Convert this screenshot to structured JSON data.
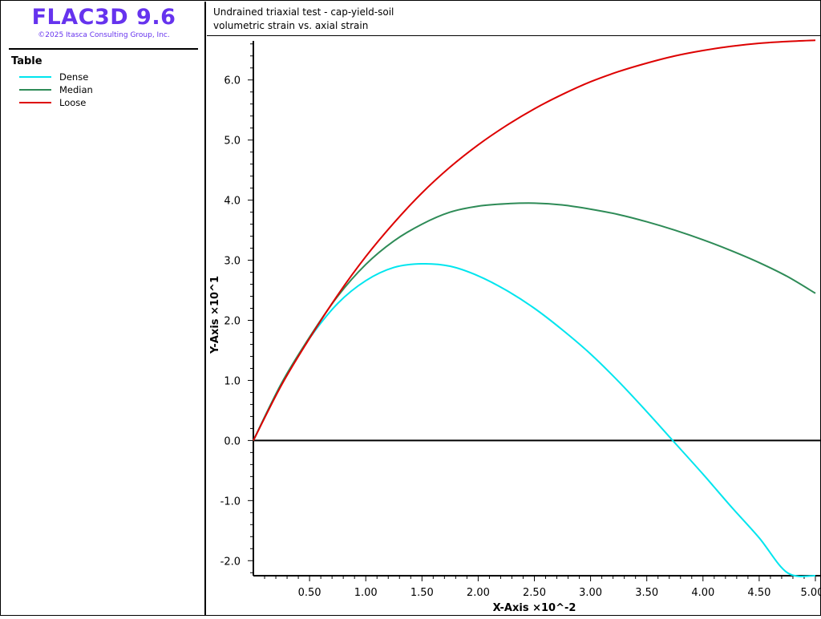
{
  "brand": {
    "title": "FLAC3D 9.6",
    "copyright": "©2025 Itasca Consulting Group, Inc.",
    "color": "#6633ee"
  },
  "legend": {
    "title": "Table",
    "items": [
      {
        "label": "Dense",
        "color": "#00e5ee"
      },
      {
        "label": "Median",
        "color": "#2e8b57"
      },
      {
        "label": "Loose",
        "color": "#dd0000"
      }
    ]
  },
  "header": {
    "line1": "Undrained triaxial test - cap-yield-soil",
    "line2": "volumetric strain vs. axial strain"
  },
  "chart_data": {
    "type": "line",
    "title": "Undrained triaxial test - cap-yield-soil",
    "subtitle": "volumetric strain vs. axial strain",
    "xlabel": "X-Axis ×10^-2",
    "ylabel": "Y-Axis ×10^1",
    "xlim": [
      0,
      5.0
    ],
    "ylim": [
      -2.25,
      6.65
    ],
    "xticks": [
      0.5,
      1.0,
      1.5,
      2.0,
      2.5,
      3.0,
      3.5,
      4.0,
      4.5,
      5.0
    ],
    "xtick_labels": [
      "0.50",
      "1.00",
      "1.50",
      "2.00",
      "2.50",
      "3.00",
      "3.50",
      "4.00",
      "4.50",
      "5.00"
    ],
    "yticks": [
      -2.0,
      -1.0,
      0.0,
      1.0,
      2.0,
      3.0,
      4.0,
      5.0,
      6.0
    ],
    "ytick_labels": [
      "-2.0",
      "-1.0",
      "0.0",
      "1.0",
      "2.0",
      "3.0",
      "4.0",
      "5.0",
      "6.0"
    ],
    "zero_line": true,
    "grid": false,
    "legend_position": "left-panel",
    "series": [
      {
        "name": "Dense",
        "color": "#00e5ee",
        "x": [
          0,
          0.25,
          0.5,
          0.75,
          1.0,
          1.25,
          1.5,
          1.75,
          2.0,
          2.25,
          2.5,
          2.75,
          3.0,
          3.25,
          3.5,
          3.75,
          4.0,
          4.25,
          4.5,
          4.75,
          5.0
        ],
        "y": [
          0,
          0.95,
          1.7,
          2.28,
          2.66,
          2.88,
          2.94,
          2.9,
          2.74,
          2.5,
          2.2,
          1.84,
          1.44,
          0.98,
          0.48,
          -0.04,
          -0.56,
          -1.1,
          -1.62,
          -2.2,
          -2.25
        ]
      },
      {
        "name": "Median",
        "color": "#2e8b57",
        "x": [
          0,
          0.25,
          0.5,
          0.75,
          1.0,
          1.25,
          1.5,
          1.75,
          2.0,
          2.25,
          2.5,
          2.75,
          3.0,
          3.25,
          3.5,
          3.75,
          4.0,
          4.25,
          4.5,
          4.75,
          5.0
        ],
        "y": [
          0,
          0.95,
          1.72,
          2.4,
          2.93,
          3.32,
          3.6,
          3.8,
          3.9,
          3.94,
          3.95,
          3.92,
          3.85,
          3.76,
          3.64,
          3.5,
          3.34,
          3.16,
          2.96,
          2.73,
          2.45
        ]
      },
      {
        "name": "Loose",
        "color": "#dd0000",
        "x": [
          0,
          0.25,
          0.5,
          0.75,
          1.0,
          1.25,
          1.5,
          1.75,
          2.0,
          2.25,
          2.5,
          2.75,
          3.0,
          3.25,
          3.5,
          3.75,
          4.0,
          4.25,
          4.5,
          4.75,
          5.0
        ],
        "y": [
          0,
          0.92,
          1.7,
          2.42,
          3.06,
          3.62,
          4.12,
          4.55,
          4.92,
          5.24,
          5.52,
          5.76,
          5.97,
          6.14,
          6.28,
          6.4,
          6.49,
          6.56,
          6.61,
          6.64,
          6.66
        ]
      }
    ]
  }
}
